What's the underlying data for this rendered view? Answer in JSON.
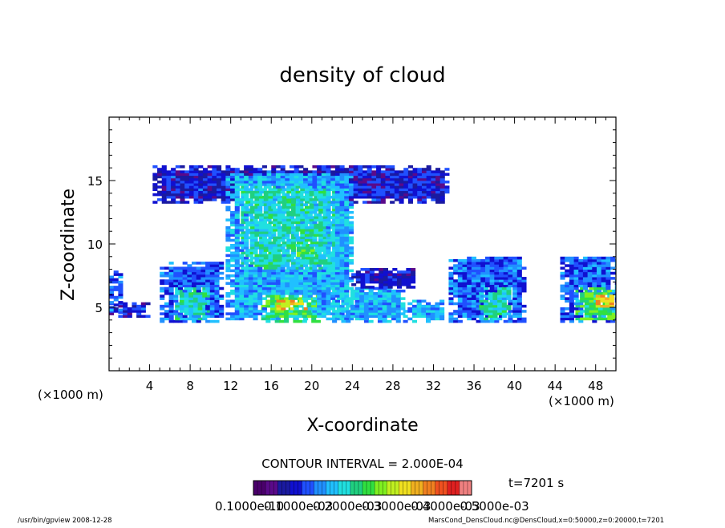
{
  "chart_data": {
    "type": "heatmap",
    "title": "density of cloud",
    "xlabel": "X-coordinate",
    "ylabel": "Z-coordinate",
    "x_unit": "(×1000 m)",
    "y_unit": "(×1000 m)",
    "xlim": [
      0,
      50
    ],
    "ylim": [
      0,
      20
    ],
    "x_ticks": [
      4,
      8,
      12,
      16,
      20,
      24,
      28,
      32,
      36,
      40,
      44,
      48
    ],
    "y_ticks": [
      5,
      10,
      15
    ],
    "contour_interval": "CONTOUR INTERVAL = 2.000E-04",
    "time_label": "t=7201 s",
    "colorbar_ticks": [
      "0.1000e-10",
      "0.1000e-03",
      "0.2000e-03",
      "0.3000e-03",
      "0.4000e-03",
      "0.5000e-03"
    ],
    "colorbar_colors": [
      "#4a006b",
      "#5a0a8a",
      "#1a1aa0",
      "#1010d0",
      "#2050ff",
      "#2090ff",
      "#20c0ff",
      "#20e0e0",
      "#20d080",
      "#30e040",
      "#80f020",
      "#c0f020",
      "#f0e020",
      "#f0b020",
      "#f08020",
      "#f05020",
      "#e02020",
      "#f08080"
    ],
    "regions": [
      {
        "x": [
          4.3,
          33.5
        ],
        "z": [
          13.2,
          16.0
        ],
        "level": 0.0001
      },
      {
        "x": [
          11.5,
          24.0
        ],
        "z": [
          4.0,
          15.5
        ],
        "level": 0.0002
      },
      {
        "x": [
          13.0,
          22.0
        ],
        "z": [
          8.0,
          14.5
        ],
        "level": 0.00025
      },
      {
        "x": [
          18.5,
          20.5
        ],
        "z": [
          8.8,
          10.0
        ],
        "level": 0.0003
      },
      {
        "x": [
          0.0,
          4.0
        ],
        "z": [
          4.2,
          5.3
        ],
        "level": 0.0001
      },
      {
        "x": [
          0.0,
          1.0
        ],
        "z": [
          4.5,
          7.8
        ],
        "level": 0.00015
      },
      {
        "x": [
          5.0,
          11.0
        ],
        "z": [
          3.8,
          8.5
        ],
        "level": 0.00015
      },
      {
        "x": [
          6.5,
          10.0
        ],
        "z": [
          4.0,
          6.5
        ],
        "level": 0.00025
      },
      {
        "x": [
          15.0,
          20.5
        ],
        "z": [
          3.8,
          6.0
        ],
        "level": 0.0003
      },
      {
        "x": [
          16.5,
          19.5
        ],
        "z": [
          4.8,
          5.6
        ],
        "level": 0.00045
      },
      {
        "x": [
          22.0,
          29.0
        ],
        "z": [
          3.8,
          6.5
        ],
        "level": 0.0002
      },
      {
        "x": [
          23.0,
          30.0
        ],
        "z": [
          6.5,
          8.0
        ],
        "level": 0.0001
      },
      {
        "x": [
          29.0,
          33.0
        ],
        "z": [
          3.8,
          5.5
        ],
        "level": 0.0002
      },
      {
        "x": [
          33.5,
          41.0
        ],
        "z": [
          3.8,
          9.0
        ],
        "level": 0.00015
      },
      {
        "x": [
          36.5,
          39.5
        ],
        "z": [
          4.0,
          6.5
        ],
        "level": 0.00025
      },
      {
        "x": [
          44.5,
          50.0
        ],
        "z": [
          3.8,
          9.0
        ],
        "level": 0.00015
      },
      {
        "x": [
          46.0,
          50.0
        ],
        "z": [
          4.0,
          6.5
        ],
        "level": 0.0003
      },
      {
        "x": [
          48.0,
          49.5
        ],
        "z": [
          5.0,
          6.0
        ],
        "level": 0.00045
      }
    ]
  },
  "footer": {
    "left": "/usr/bin/gpview  2008-12-28",
    "right": "MarsCond_DensCloud.nc@DensCloud,x=0:50000,z=0:20000,t=7201"
  }
}
